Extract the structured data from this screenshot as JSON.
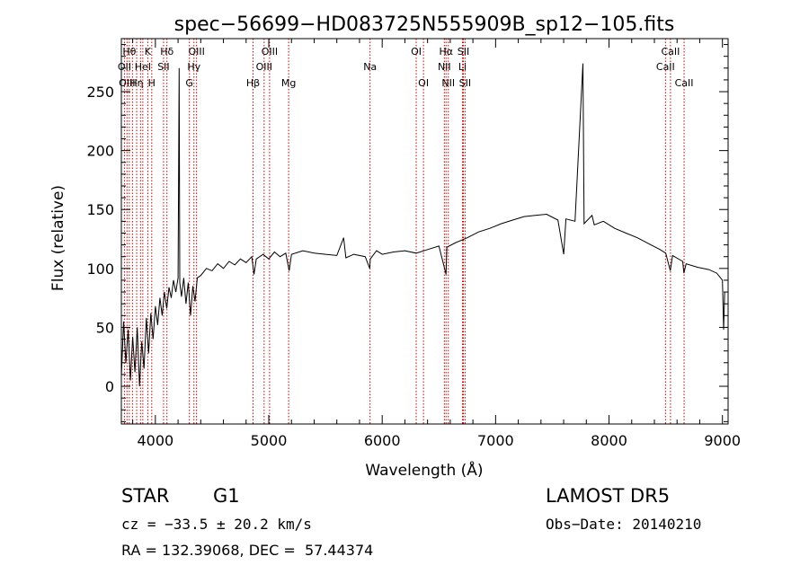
{
  "chart_data": {
    "type": "line",
    "title": "spec−56699−HD083725N555909B_sp12−105.fits",
    "xlabel": "Wavelength (Å)",
    "ylabel": "Flux (relative)",
    "xlim": [
      3700,
      9050
    ],
    "ylim": [
      -32,
      295
    ],
    "xticks": [
      4000,
      5000,
      6000,
      7000,
      8000,
      9000
    ],
    "yticks": [
      0,
      50,
      100,
      150,
      200,
      250
    ],
    "grid": false,
    "series": [
      {
        "points": [
          [
            3700,
            8
          ],
          [
            3720,
            55
          ],
          [
            3740,
            20
          ],
          [
            3760,
            48
          ],
          [
            3780,
            5
          ],
          [
            3800,
            42
          ],
          [
            3820,
            12
          ],
          [
            3840,
            50
          ],
          [
            3860,
            0
          ],
          [
            3880,
            38
          ],
          [
            3900,
            15
          ],
          [
            3920,
            58
          ],
          [
            3940,
            28
          ],
          [
            3960,
            62
          ],
          [
            3980,
            40
          ],
          [
            4000,
            68
          ],
          [
            4020,
            52
          ],
          [
            4040,
            75
          ],
          [
            4060,
            60
          ],
          [
            4080,
            80
          ],
          [
            4100,
            66
          ],
          [
            4120,
            84
          ],
          [
            4140,
            75
          ],
          [
            4160,
            90
          ],
          [
            4180,
            80
          ],
          [
            4200,
            92
          ],
          [
            4210,
            270
          ],
          [
            4215,
            88
          ],
          [
            4230,
            76
          ],
          [
            4250,
            92
          ],
          [
            4270,
            70
          ],
          [
            4290,
            88
          ],
          [
            4310,
            60
          ],
          [
            4330,
            85
          ],
          [
            4350,
            72
          ],
          [
            4370,
            92
          ],
          [
            4400,
            94
          ],
          [
            4450,
            100
          ],
          [
            4500,
            98
          ],
          [
            4550,
            104
          ],
          [
            4600,
            100
          ],
          [
            4650,
            106
          ],
          [
            4700,
            103
          ],
          [
            4750,
            108
          ],
          [
            4800,
            105
          ],
          [
            4850,
            110
          ],
          [
            4870,
            95
          ],
          [
            4890,
            108
          ],
          [
            4950,
            112
          ],
          [
            5000,
            108
          ],
          [
            5050,
            114
          ],
          [
            5100,
            110
          ],
          [
            5150,
            113
          ],
          [
            5180,
            98
          ],
          [
            5200,
            112
          ],
          [
            5300,
            115
          ],
          [
            5400,
            113
          ],
          [
            5500,
            112
          ],
          [
            5600,
            111
          ],
          [
            5660,
            126
          ],
          [
            5680,
            109
          ],
          [
            5750,
            112
          ],
          [
            5850,
            110
          ],
          [
            5890,
            100
          ],
          [
            5895,
            108
          ],
          [
            5950,
            115
          ],
          [
            6000,
            112
          ],
          [
            6100,
            114
          ],
          [
            6200,
            115
          ],
          [
            6300,
            113
          ],
          [
            6400,
            116
          ],
          [
            6500,
            119
          ],
          [
            6563,
            95
          ],
          [
            6570,
            118
          ],
          [
            6650,
            122
          ],
          [
            6750,
            126
          ],
          [
            6850,
            131
          ],
          [
            6950,
            134
          ],
          [
            7050,
            138
          ],
          [
            7150,
            141
          ],
          [
            7250,
            144
          ],
          [
            7350,
            145
          ],
          [
            7450,
            146
          ],
          [
            7550,
            141
          ],
          [
            7600,
            112
          ],
          [
            7620,
            142
          ],
          [
            7700,
            140
          ],
          [
            7770,
            274
          ],
          [
            7780,
            138
          ],
          [
            7850,
            145
          ],
          [
            7870,
            137
          ],
          [
            7950,
            140
          ],
          [
            8050,
            134
          ],
          [
            8150,
            130
          ],
          [
            8250,
            126
          ],
          [
            8350,
            121
          ],
          [
            8450,
            116
          ],
          [
            8500,
            113
          ],
          [
            8540,
            98
          ],
          [
            8560,
            111
          ],
          [
            8650,
            106
          ],
          [
            8660,
            96
          ],
          [
            8680,
            104
          ],
          [
            8780,
            101
          ],
          [
            8880,
            99
          ],
          [
            8950,
            96
          ],
          [
            9000,
            90
          ],
          [
            9010,
            48
          ],
          [
            9020,
            80
          ]
        ]
      }
    ],
    "lines": [
      {
        "wavelength": 3727,
        "label": "OII",
        "row": 1
      },
      {
        "wavelength": 3750,
        "label": "OIII",
        "row": 2
      },
      {
        "wavelength": 3770,
        "label": "Hθ",
        "row": 0
      },
      {
        "wavelength": 3798,
        "label": "",
        "row": -1
      },
      {
        "wavelength": 3835,
        "label": "Hη",
        "row": 2
      },
      {
        "wavelength": 3869,
        "label": "",
        "row": -1
      },
      {
        "wavelength": 3889,
        "label": "HeI",
        "row": 1
      },
      {
        "wavelength": 3933,
        "label": "K",
        "row": 0
      },
      {
        "wavelength": 3968,
        "label": "H",
        "row": 2
      },
      {
        "wavelength": 4072,
        "label": "SII",
        "row": 1
      },
      {
        "wavelength": 4102,
        "label": "Hδ",
        "row": 0
      },
      {
        "wavelength": 4300,
        "label": "G",
        "row": 2
      },
      {
        "wavelength": 4340,
        "label": "Hγ",
        "row": 1
      },
      {
        "wavelength": 4363,
        "label": "OIII",
        "row": 0
      },
      {
        "wavelength": 4861,
        "label": "Hβ",
        "row": 2
      },
      {
        "wavelength": 4959,
        "label": "OIII",
        "row": 1
      },
      {
        "wavelength": 5007,
        "label": "OIII",
        "row": 0
      },
      {
        "wavelength": 5175,
        "label": "Mg",
        "row": 2
      },
      {
        "wavelength": 5893,
        "label": "Na",
        "row": 1
      },
      {
        "wavelength": 6300,
        "label": "OI",
        "row": 0
      },
      {
        "wavelength": 6364,
        "label": "OI",
        "row": 2
      },
      {
        "wavelength": 6548,
        "label": "NII",
        "row": 1
      },
      {
        "wavelength": 6563,
        "label": "Hα",
        "row": 0
      },
      {
        "wavelength": 6583,
        "label": "NII",
        "row": 2
      },
      {
        "wavelength": 6708,
        "label": "Li",
        "row": 1
      },
      {
        "wavelength": 6716,
        "label": "SII",
        "row": 0
      },
      {
        "wavelength": 6731,
        "label": "SII",
        "row": 2
      },
      {
        "wavelength": 8498,
        "label": "CaII",
        "row": 1
      },
      {
        "wavelength": 8542,
        "label": "CaII",
        "row": 0
      },
      {
        "wavelength": 8662,
        "label": "CaII",
        "row": 2
      }
    ],
    "colors": {
      "spectrum": "#000000",
      "lines": "#cc0000",
      "axes": "#000000"
    }
  },
  "info": {
    "class": "STAR",
    "subclass": "G1",
    "survey": "LAMOST DR5",
    "cz": "cz = −33.5 ± 20.2 km/s",
    "obs_date": "Obs−Date: 20140210",
    "coords": "RA = 132.39068, DEC =  57.44374"
  }
}
